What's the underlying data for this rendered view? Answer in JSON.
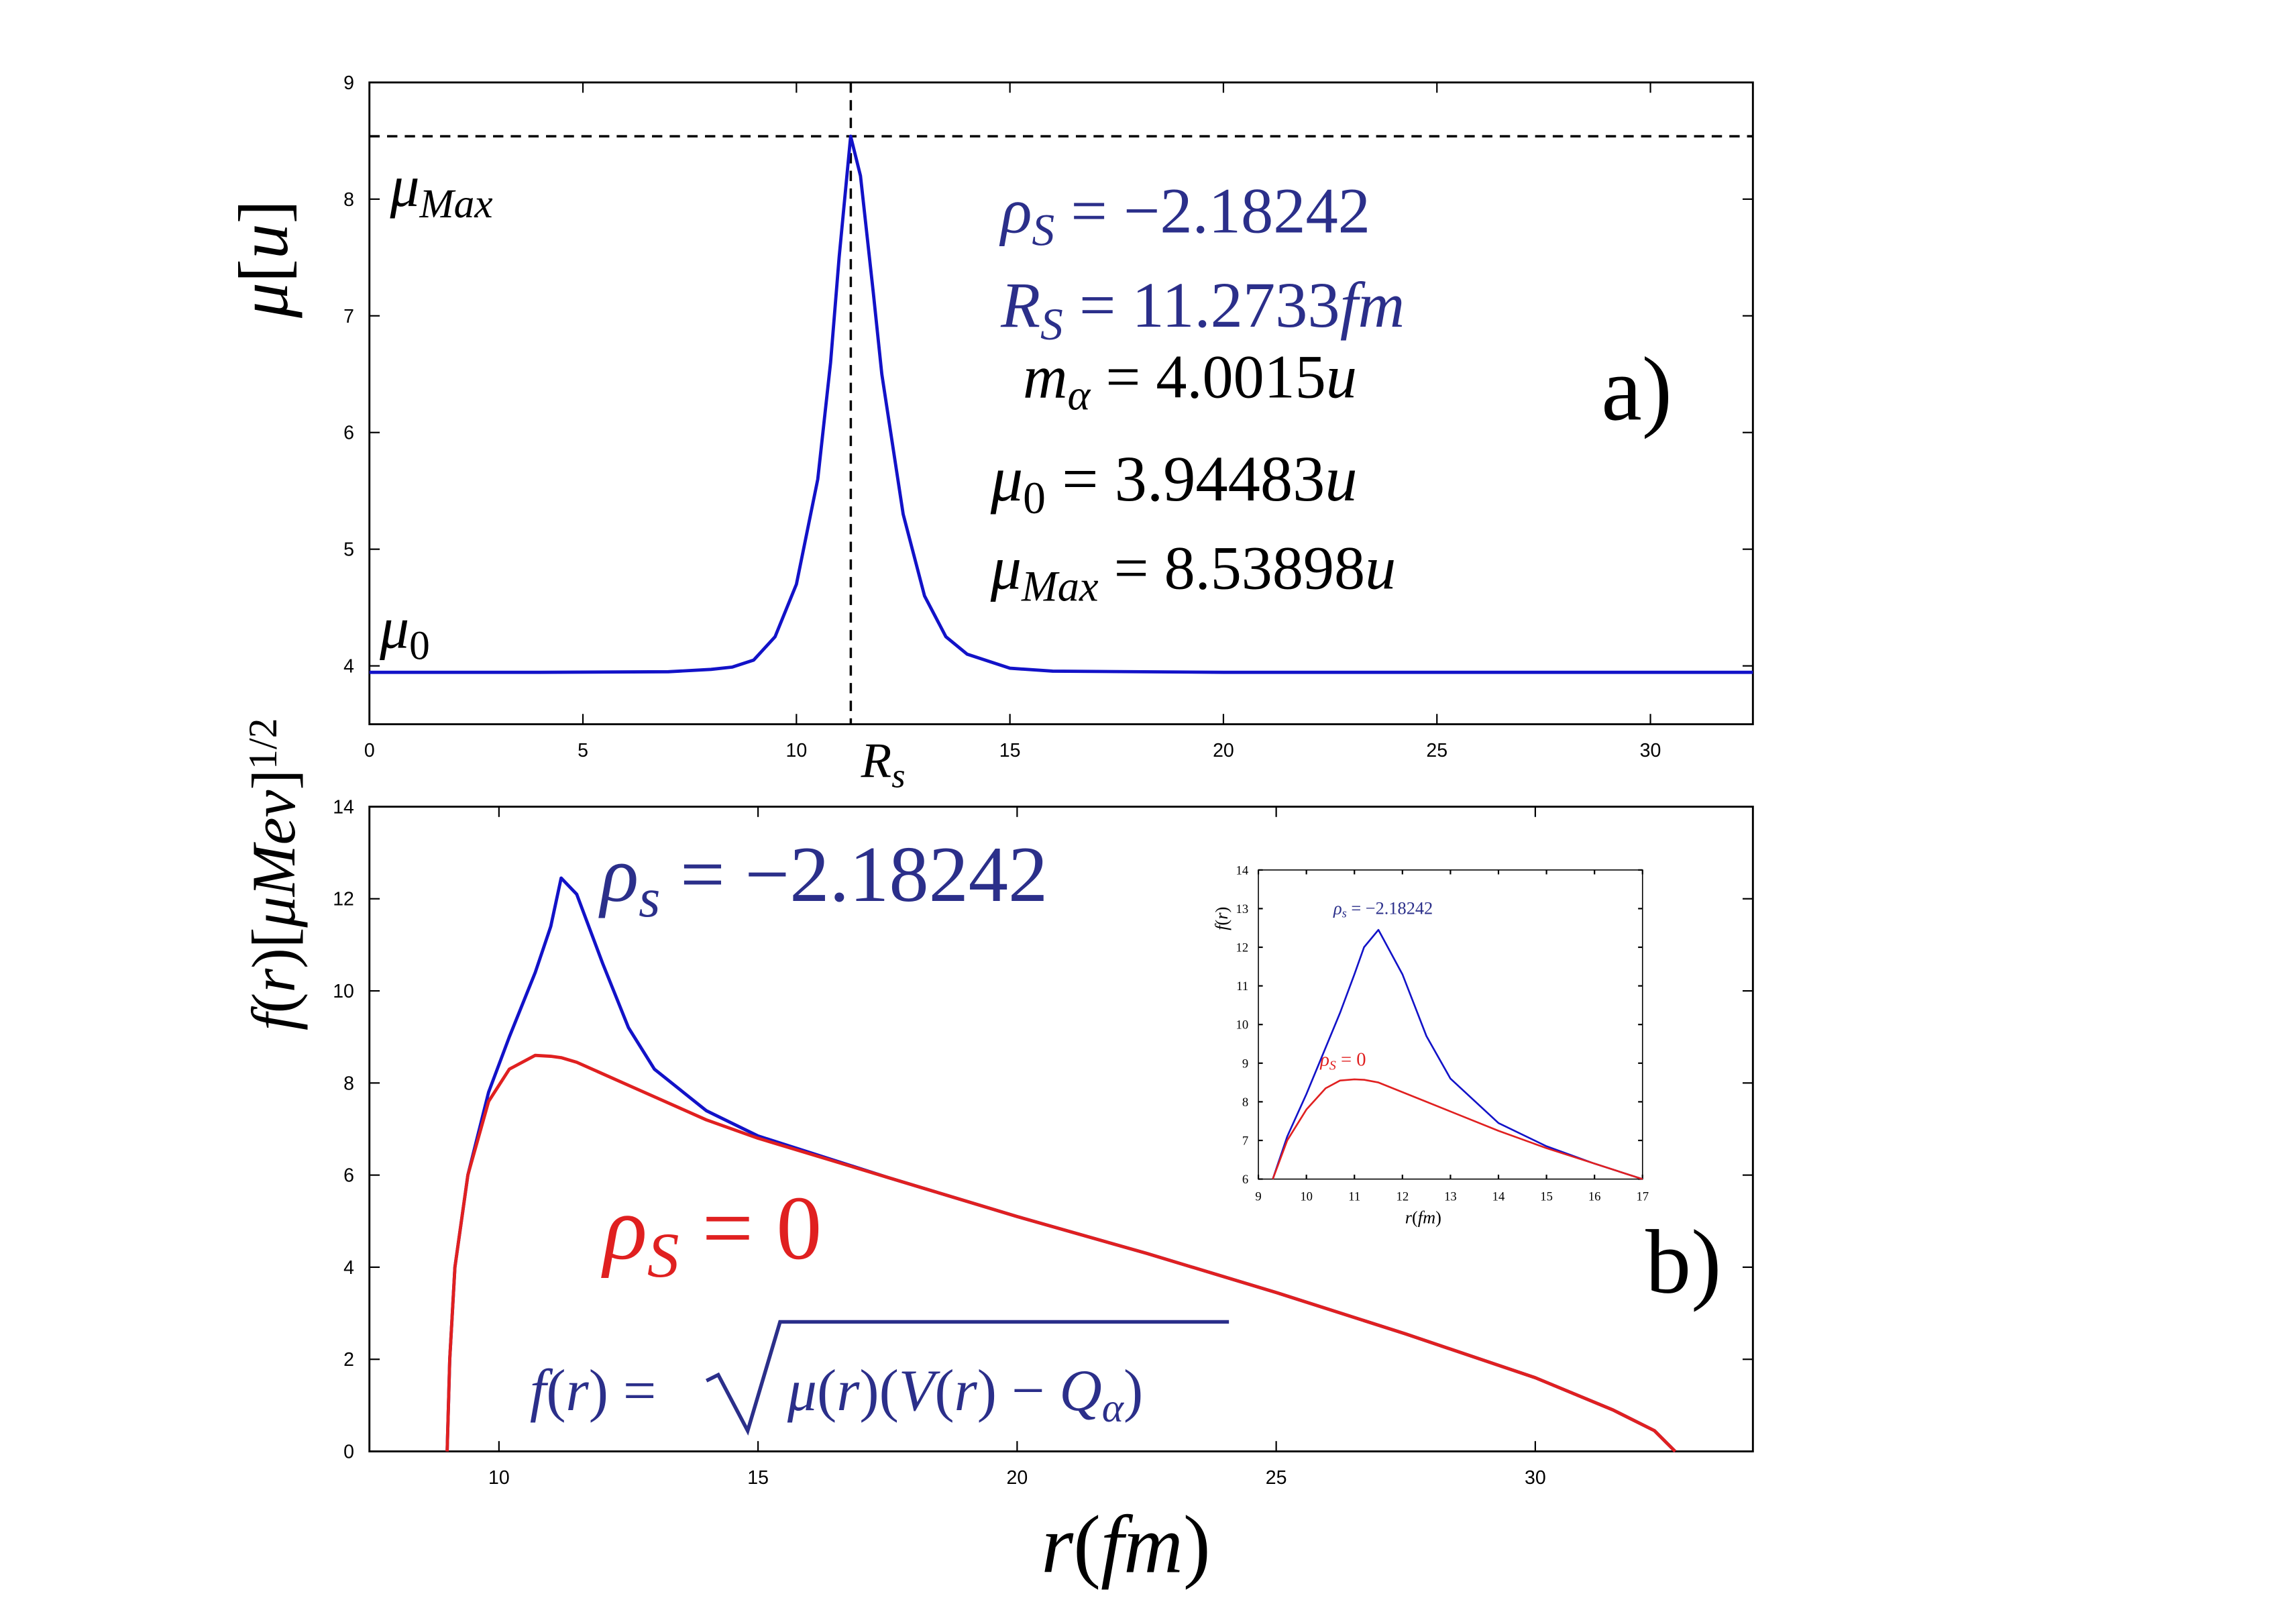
{
  "chart_data": [
    {
      "type": "line",
      "xlim": [
        0,
        32.4
      ],
      "ylim": [
        3.5,
        9
      ],
      "xticks": [
        0,
        5,
        10,
        15,
        20,
        25,
        30
      ],
      "yticks": [
        4,
        5,
        6,
        7,
        8,
        9
      ],
      "x": [
        0,
        4,
        7,
        8,
        8.5,
        9,
        9.5,
        10,
        10.5,
        10.8,
        11,
        11.27,
        11.5,
        11.8,
        12,
        12.5,
        13,
        13.5,
        14,
        15,
        16,
        20,
        25,
        32.4
      ],
      "series": [
        {
          "color": "#1212c8",
          "values": [
            3.945,
            3.945,
            3.95,
            3.97,
            3.99,
            4.05,
            4.25,
            4.7,
            5.6,
            6.6,
            7.5,
            8.539,
            8.2,
            7.2,
            6.5,
            5.3,
            4.6,
            4.25,
            4.1,
            3.98,
            3.955,
            3.945,
            3.945,
            3.945
          ]
        }
      ],
      "hline": 8.53898,
      "vline": 11.2733,
      "y_label": [
        {
          "t": "μ",
          "i": true
        },
        {
          "t": "["
        },
        {
          "t": "u",
          "i": true
        },
        {
          "t": "]"
        }
      ],
      "panel_label": "a)",
      "annotations": [
        {
          "color": "#000000",
          "parts": [
            {
              "t": "μ",
              "i": true
            },
            {
              "t": "Max",
              "i": true,
              "sub": true
            }
          ]
        },
        {
          "color": "#000000",
          "parts": [
            {
              "t": "μ",
              "i": true
            },
            {
              "t": "0",
              "sub": true
            }
          ]
        },
        {
          "color": "#000000",
          "parts": [
            {
              "t": "R",
              "i": true
            },
            {
              "t": "s",
              "i": true,
              "sub": true
            }
          ]
        },
        {
          "color": "#2b2f8a",
          "parts": [
            {
              "t": "ρ",
              "i": true
            },
            {
              "t": "S",
              "i": true,
              "sub": true
            },
            {
              "t": " = −2.18242"
            }
          ]
        },
        {
          "color": "#2b2f8a",
          "parts": [
            {
              "t": "R",
              "i": true
            },
            {
              "t": "S",
              "i": true,
              "sub": true
            },
            {
              "t": " = 11.2733"
            },
            {
              "t": "fm",
              "i": true
            }
          ]
        },
        {
          "color": "#000000",
          "parts": [
            {
              "t": "m",
              "i": true
            },
            {
              "t": "α",
              "i": true,
              "sub": true
            },
            {
              "t": " = 4.0015"
            },
            {
              "t": "u",
              "i": true
            }
          ]
        },
        {
          "color": "#000000",
          "parts": [
            {
              "t": "μ",
              "i": true
            },
            {
              "t": "0",
              "sub": true
            },
            {
              "t": " = 3.94483"
            },
            {
              "t": "u",
              "i": true
            }
          ]
        },
        {
          "color": "#000000",
          "parts": [
            {
              "t": "μ",
              "i": true
            },
            {
              "t": "Max",
              "i": true,
              "sub": true
            },
            {
              "t": " = 8.53898"
            },
            {
              "t": "u",
              "i": true
            }
          ]
        }
      ]
    },
    {
      "type": "line",
      "xlim": [
        7.5,
        34.2
      ],
      "ylim": [
        0,
        14
      ],
      "xticks": [
        10,
        15,
        20,
        25,
        30
      ],
      "yticks": [
        0,
        2,
        4,
        6,
        8,
        10,
        12,
        14
      ],
      "x": [
        9.0,
        9.05,
        9.15,
        9.4,
        9.8,
        10.2,
        10.7,
        11.0,
        11.2,
        11.5,
        12,
        12.5,
        13,
        14,
        15,
        17.5,
        20,
        22.5,
        25,
        27.5,
        30,
        31.5,
        32.3,
        32.7
      ],
      "series": [
        {
          "color": "#1212c8",
          "values": [
            0,
            2,
            4,
            6,
            7.8,
            9.0,
            10.4,
            11.4,
            12.45,
            12.1,
            10.6,
            9.2,
            8.3,
            7.4,
            6.85,
            5.95,
            5.1,
            4.3,
            3.45,
            2.55,
            1.6,
            0.9,
            0.45,
            0
          ]
        },
        {
          "color": "#e02020",
          "values": [
            0,
            2,
            4,
            6,
            7.6,
            8.3,
            8.6,
            8.58,
            8.55,
            8.45,
            8.2,
            7.95,
            7.7,
            7.2,
            6.8,
            5.95,
            5.1,
            4.3,
            3.45,
            2.55,
            1.6,
            0.9,
            0.45,
            0
          ]
        }
      ],
      "y_label": [
        {
          "t": "f",
          "i": true
        },
        {
          "t": "("
        },
        {
          "t": "r",
          "i": true
        },
        {
          "t": ")["
        },
        {
          "t": "μ",
          "i": true
        },
        {
          "t": "Mev",
          "i": true
        },
        {
          "t": "]"
        },
        {
          "t": "1/2",
          "sup": true
        }
      ],
      "x_label": [
        {
          "t": "r",
          "i": true
        },
        {
          "t": "("
        },
        {
          "t": "fm",
          "i": true
        },
        {
          "t": ")"
        }
      ],
      "panel_label": "b)",
      "annotations": [
        {
          "color": "#2b2f8a",
          "parts": [
            {
              "t": "ρ",
              "i": true
            },
            {
              "t": "s",
              "i": true,
              "sub": true
            },
            {
              "t": " = −2.18242"
            }
          ]
        },
        {
          "color": "#e02020",
          "parts": [
            {
              "t": "ρ",
              "i": true
            },
            {
              "t": "S",
              "i": true,
              "sub": true
            },
            {
              "t": " = 0"
            }
          ]
        },
        {
          "color": "#2b2f8a",
          "parts": [
            {
              "t": "f",
              "i": true
            },
            {
              "t": "("
            },
            {
              "t": "r",
              "i": true
            },
            {
              "t": ") = "
            },
            {
              "t": "μ",
              "i": true,
              "sqrt": true
            },
            {
              "t": "("
            },
            {
              "t": "r",
              "i": true
            },
            {
              "t": ")("
            },
            {
              "t": "V",
              "i": true
            },
            {
              "t": "("
            },
            {
              "t": "r",
              "i": true
            },
            {
              "t": ") − "
            },
            {
              "t": "Q",
              "i": true
            },
            {
              "t": "α",
              "i": true,
              "sub": true
            },
            {
              "t": ")"
            }
          ]
        }
      ]
    },
    {
      "type": "line",
      "xlim": [
        9,
        17
      ],
      "ylim": [
        6,
        14
      ],
      "xticks": [
        9,
        10,
        11,
        12,
        13,
        14,
        15,
        16,
        17
      ],
      "yticks": [
        6,
        7,
        8,
        9,
        10,
        11,
        12,
        13,
        14
      ],
      "x": [
        9.3,
        9.6,
        10.0,
        10.4,
        10.7,
        11.0,
        11.2,
        11.5,
        12,
        12.5,
        13,
        14,
        15,
        16,
        17
      ],
      "series": [
        {
          "color": "#1212c8",
          "values": [
            6,
            7.1,
            8.2,
            9.4,
            10.3,
            11.3,
            12.0,
            12.45,
            11.3,
            9.7,
            8.6,
            7.45,
            6.85,
            6.4,
            6.0
          ]
        },
        {
          "color": "#e02020",
          "values": [
            6,
            7.0,
            7.8,
            8.35,
            8.55,
            8.58,
            8.57,
            8.5,
            8.25,
            8.0,
            7.75,
            7.25,
            6.8,
            6.4,
            6.0
          ]
        }
      ],
      "y_label": [
        {
          "t": "f",
          "i": true
        },
        {
          "t": "("
        },
        {
          "t": "r",
          "i": true
        },
        {
          "t": ")"
        }
      ],
      "x_label": [
        {
          "t": "r",
          "i": true
        },
        {
          "t": "("
        },
        {
          "t": "fm",
          "i": true
        },
        {
          "t": ")"
        }
      ],
      "annotations": [
        {
          "color": "#2b2f8a",
          "parts": [
            {
              "t": "ρ",
              "i": true
            },
            {
              "t": "s",
              "i": true,
              "sub": true
            },
            {
              "t": " = −2.18242"
            }
          ]
        },
        {
          "color": "#e02020",
          "parts": [
            {
              "t": "ρ",
              "i": true
            },
            {
              "t": "S",
              "i": true,
              "sub": true
            },
            {
              "t": " = 0"
            }
          ]
        }
      ]
    }
  ]
}
